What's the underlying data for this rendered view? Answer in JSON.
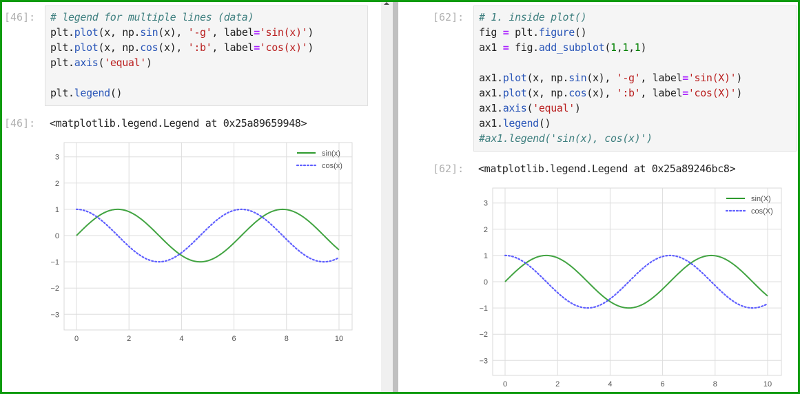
{
  "left": {
    "input_prompt": "[46]:",
    "output_prompt": "[46]:",
    "code_lines": [
      [
        {
          "t": "# legend for multiple lines (data)",
          "c": "comment"
        }
      ],
      [
        {
          "t": "plt."
        },
        {
          "t": "plot",
          "c": "attr"
        },
        {
          "t": "(x, np."
        },
        {
          "t": "sin",
          "c": "attr"
        },
        {
          "t": "(x), "
        },
        {
          "t": "'-g'",
          "c": "str"
        },
        {
          "t": ", label"
        },
        {
          "t": "=",
          "c": "op"
        },
        {
          "t": "'sin(x)'",
          "c": "str"
        },
        {
          "t": ")"
        }
      ],
      [
        {
          "t": "plt."
        },
        {
          "t": "plot",
          "c": "attr"
        },
        {
          "t": "(x, np."
        },
        {
          "t": "cos",
          "c": "attr"
        },
        {
          "t": "(x), "
        },
        {
          "t": "':b'",
          "c": "str"
        },
        {
          "t": ", label"
        },
        {
          "t": "=",
          "c": "op"
        },
        {
          "t": "'cos(x)'",
          "c": "str"
        },
        {
          "t": ")"
        }
      ],
      [
        {
          "t": "plt."
        },
        {
          "t": "axis",
          "c": "attr"
        },
        {
          "t": "("
        },
        {
          "t": "'equal'",
          "c": "str"
        },
        {
          "t": ")"
        }
      ],
      [],
      [
        {
          "t": "plt."
        },
        {
          "t": "legend",
          "c": "attr"
        },
        {
          "t": "()"
        }
      ]
    ],
    "output_text": "<matplotlib.legend.Legend at 0x25a89659948>"
  },
  "right": {
    "input_prompt": "[62]:",
    "output_prompt": "[62]:",
    "code_lines": [
      [
        {
          "t": "# 1. inside plot()",
          "c": "comment"
        }
      ],
      [
        {
          "t": "fig "
        },
        {
          "t": "=",
          "c": "op"
        },
        {
          "t": " plt."
        },
        {
          "t": "figure",
          "c": "attr"
        },
        {
          "t": "()"
        }
      ],
      [
        {
          "t": "ax1 "
        },
        {
          "t": "=",
          "c": "op"
        },
        {
          "t": " fig."
        },
        {
          "t": "add_subplot",
          "c": "attr"
        },
        {
          "t": "("
        },
        {
          "t": "1",
          "c": "num"
        },
        {
          "t": ","
        },
        {
          "t": "1",
          "c": "num"
        },
        {
          "t": ","
        },
        {
          "t": "1",
          "c": "num"
        },
        {
          "t": ")"
        }
      ],
      [],
      [
        {
          "t": "ax1."
        },
        {
          "t": "plot",
          "c": "attr"
        },
        {
          "t": "(x, np."
        },
        {
          "t": "sin",
          "c": "attr"
        },
        {
          "t": "(x), "
        },
        {
          "t": "'-g'",
          "c": "str"
        },
        {
          "t": ", label"
        },
        {
          "t": "=",
          "c": "op"
        },
        {
          "t": "'sin(X)'",
          "c": "str"
        },
        {
          "t": ")"
        }
      ],
      [
        {
          "t": "ax1."
        },
        {
          "t": "plot",
          "c": "attr"
        },
        {
          "t": "(x, np."
        },
        {
          "t": "cos",
          "c": "attr"
        },
        {
          "t": "(x), "
        },
        {
          "t": "':b'",
          "c": "str"
        },
        {
          "t": ", label"
        },
        {
          "t": "=",
          "c": "op"
        },
        {
          "t": "'cos(X)'",
          "c": "str"
        },
        {
          "t": ")"
        }
      ],
      [
        {
          "t": "ax1."
        },
        {
          "t": "axis",
          "c": "attr"
        },
        {
          "t": "("
        },
        {
          "t": "'equal'",
          "c": "str"
        },
        {
          "t": ")"
        }
      ],
      [
        {
          "t": "ax1."
        },
        {
          "t": "legend",
          "c": "attr"
        },
        {
          "t": "()"
        }
      ],
      [
        {
          "t": "#ax1.legend('sin(x), cos(x)')",
          "c": "comment"
        }
      ]
    ],
    "output_text": "<matplotlib.legend.Legend at 0x25a89246bc8>"
  },
  "colors": {
    "frame_border": "#0d9b0d",
    "sin_line": "#2e9a2e",
    "cos_line": "#4444ff",
    "grid": "#dddddd"
  },
  "chart_data": [
    {
      "type": "line",
      "title": "",
      "xlabel": "",
      "ylabel": "",
      "x_ticks": [
        0,
        2,
        4,
        6,
        8,
        10
      ],
      "y_ticks": [
        -3,
        -2,
        -1,
        0,
        1,
        2,
        3
      ],
      "xlim": [
        -0.5,
        10.5
      ],
      "ylim": [
        -3.6,
        3.6
      ],
      "grid": true,
      "legend_position": "upper right",
      "x_range": [
        0,
        10
      ],
      "series": [
        {
          "name": "sin(x)",
          "function": "sin(x)",
          "style": "solid",
          "color": "#2e9a2e",
          "sample_x": [
            0,
            1,
            2,
            3,
            4,
            5,
            6,
            7,
            8,
            9,
            10
          ],
          "sample_y": [
            0.0,
            0.84,
            0.91,
            0.14,
            -0.76,
            -0.96,
            -0.28,
            0.66,
            0.99,
            0.41,
            -0.54
          ]
        },
        {
          "name": "cos(x)",
          "function": "cos(x)",
          "style": "dotted",
          "color": "#4444ff",
          "sample_x": [
            0,
            1,
            2,
            3,
            4,
            5,
            6,
            7,
            8,
            9,
            10
          ],
          "sample_y": [
            1.0,
            0.54,
            -0.42,
            -0.99,
            -0.65,
            0.28,
            0.96,
            0.75,
            -0.15,
            -0.91,
            -0.84
          ]
        }
      ]
    },
    {
      "type": "line",
      "title": "",
      "xlabel": "",
      "ylabel": "",
      "x_ticks": [
        0,
        2,
        4,
        6,
        8,
        10
      ],
      "y_ticks": [
        -3,
        -2,
        -1,
        0,
        1,
        2,
        3
      ],
      "xlim": [
        -0.5,
        10.5
      ],
      "ylim": [
        -3.6,
        3.6
      ],
      "grid": true,
      "legend_position": "upper right",
      "x_range": [
        0,
        10
      ],
      "series": [
        {
          "name": "sin(X)",
          "function": "sin(x)",
          "style": "solid",
          "color": "#2e9a2e",
          "sample_x": [
            0,
            1,
            2,
            3,
            4,
            5,
            6,
            7,
            8,
            9,
            10
          ],
          "sample_y": [
            0.0,
            0.84,
            0.91,
            0.14,
            -0.76,
            -0.96,
            -0.28,
            0.66,
            0.99,
            0.41,
            -0.54
          ]
        },
        {
          "name": "cos(X)",
          "function": "cos(x)",
          "style": "dotted",
          "color": "#4444ff",
          "sample_x": [
            0,
            1,
            2,
            3,
            4,
            5,
            6,
            7,
            8,
            9,
            10
          ],
          "sample_y": [
            1.0,
            0.54,
            -0.42,
            -0.99,
            -0.65,
            0.28,
            0.96,
            0.75,
            -0.15,
            -0.91,
            -0.84
          ]
        }
      ]
    }
  ]
}
